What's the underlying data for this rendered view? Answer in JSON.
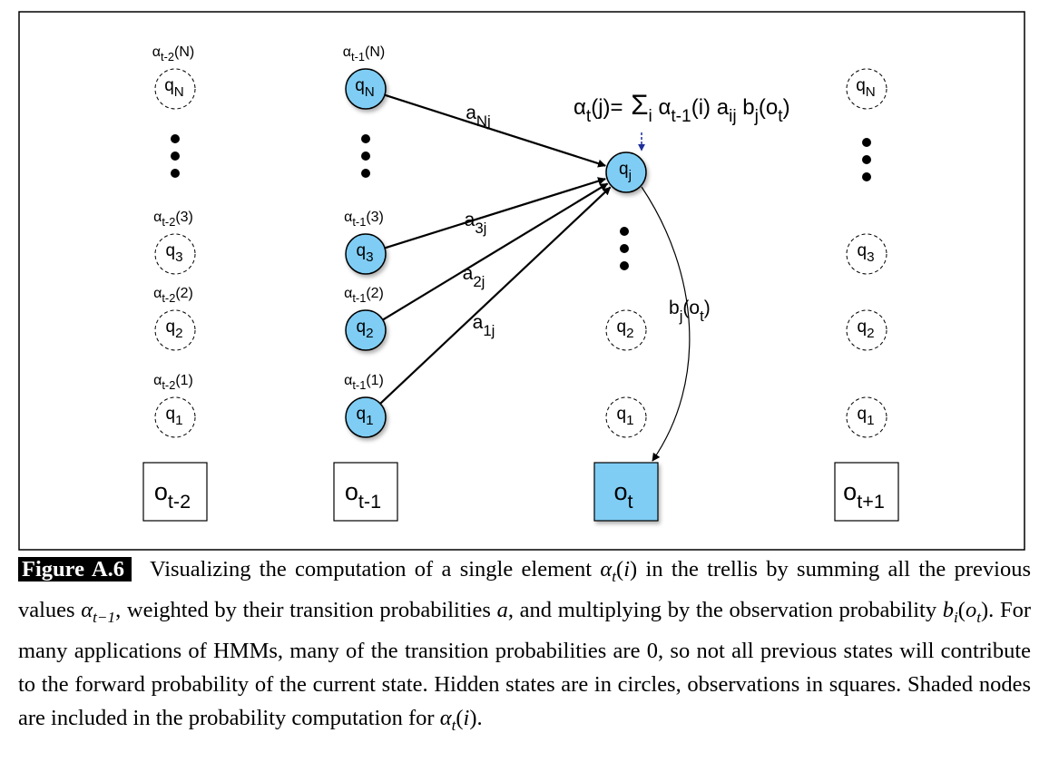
{
  "diagram": {
    "colors": {
      "shaded": "#7fcdf4",
      "stroke": "#000000",
      "formula_arrow": "#1f2f9a",
      "background": "#ffffff"
    },
    "columns": [
      {
        "id": "t-2",
        "observation": {
          "base": "o",
          "sub": "t-2",
          "shaded": false
        },
        "states": [
          {
            "base": "q",
            "sub": "N",
            "alpha": {
              "base": "α",
              "sub": "t-2",
              "arg": "(N)"
            },
            "shaded": false
          },
          {
            "base": "q",
            "sub": "3",
            "alpha": {
              "base": "α",
              "sub": "t-2",
              "arg": "(3)"
            },
            "shaded": false
          },
          {
            "base": "q",
            "sub": "2",
            "alpha": {
              "base": "α",
              "sub": "t-2",
              "arg": "(2)"
            },
            "shaded": false
          },
          {
            "base": "q",
            "sub": "1",
            "alpha": {
              "base": "α",
              "sub": "t-2",
              "arg": "(1)"
            },
            "shaded": false
          }
        ]
      },
      {
        "id": "t-1",
        "observation": {
          "base": "o",
          "sub": "t-1",
          "shaded": false
        },
        "states": [
          {
            "base": "q",
            "sub": "N",
            "alpha": {
              "base": "α",
              "sub": "t-1",
              "arg": "(N)"
            },
            "shaded": true
          },
          {
            "base": "q",
            "sub": "3",
            "alpha": {
              "base": "α",
              "sub": "t-1",
              "arg": "(3)"
            },
            "shaded": true
          },
          {
            "base": "q",
            "sub": "2",
            "alpha": {
              "base": "α",
              "sub": "t-1",
              "arg": "(2)"
            },
            "shaded": true
          },
          {
            "base": "q",
            "sub": "1",
            "alpha": {
              "base": "α",
              "sub": "t-1",
              "arg": "(1)"
            },
            "shaded": true
          }
        ]
      },
      {
        "id": "t",
        "observation": {
          "base": "o",
          "sub": "t",
          "shaded": true
        },
        "states": [
          {
            "base": "q",
            "sub": "j",
            "shaded": true
          },
          {
            "base": "q",
            "sub": "2",
            "shaded": false
          },
          {
            "base": "q",
            "sub": "1",
            "shaded": false
          }
        ]
      },
      {
        "id": "t+1",
        "observation": {
          "base": "o",
          "sub": "t+1",
          "shaded": false
        },
        "states": [
          {
            "base": "q",
            "sub": "N",
            "shaded": false
          },
          {
            "base": "q",
            "sub": "3",
            "shaded": false
          },
          {
            "base": "q",
            "sub": "2",
            "shaded": false
          },
          {
            "base": "q",
            "sub": "1",
            "shaded": false
          }
        ]
      }
    ],
    "transitions": [
      {
        "from": "q_N",
        "label": {
          "base": "a",
          "sub": "Nj"
        }
      },
      {
        "from": "q_3",
        "label": {
          "base": "a",
          "sub": "3j"
        }
      },
      {
        "from": "q_2",
        "label": {
          "base": "a",
          "sub": "2j"
        }
      },
      {
        "from": "q_1",
        "label": {
          "base": "a",
          "sub": "1j"
        }
      }
    ],
    "emission": {
      "base": "b",
      "sub": "j",
      "arg": "(o",
      "arg_sub": "t",
      "close": ")"
    },
    "formula": {
      "lhs": {
        "base": "α",
        "sub": "t",
        "arg": "(j)="
      },
      "sigma": "Σ",
      "sigma_sub": "i",
      "alpha_term": {
        "base": "α",
        "sub": "t-1",
        "arg": "(i)"
      },
      "a_term": {
        "base": "a",
        "sub": "ij"
      },
      "b_term": {
        "base": "b",
        "sub": "j",
        "arg": "(o",
        "arg_sub": "t",
        "close": ")"
      }
    }
  },
  "caption": {
    "figure_label": "Figure A.6",
    "segments": [
      {
        "text": "Visualizing the computation of a single element "
      },
      {
        "math": "α",
        "sub": "t",
        "paren": "(i)"
      },
      {
        "text": " in the trellis by summing all the previous values "
      },
      {
        "math": "α",
        "sub": "t−1"
      },
      {
        "text": ", weighted by their transition probabilities "
      },
      {
        "math": "a"
      },
      {
        "text": ", and multiplying by the observation probability "
      },
      {
        "math": "b",
        "sub": "i",
        "paren": "(o",
        "paren_sub": "t",
        "paren_close": ")"
      },
      {
        "text": ". For many applications of HMMs, many of the transition probabilities are 0, so not all previous states will contribute to the forward probability of the current state. Hidden states are in circles, observations in squares. Shaded nodes are included in the probability computation for "
      },
      {
        "math": "α",
        "sub": "t",
        "paren": "(i)"
      },
      {
        "text": "."
      }
    ]
  }
}
